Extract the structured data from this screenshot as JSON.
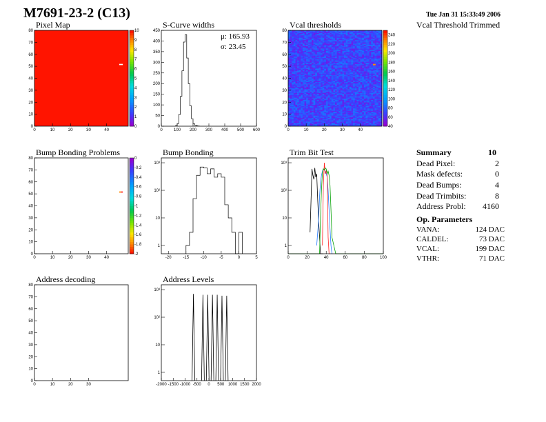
{
  "header": {
    "title": "M7691-23-2 (C13)",
    "timestamp": "Tue Jan 31 15:33:49 2006"
  },
  "panels": {
    "pixel_map": "Pixel Map",
    "scurve": "S-Curve widths",
    "vcal": "Vcal thresholds",
    "vcal_trimmed": "Vcal Threshold Trimmed",
    "bump_problems": "Bump Bonding Problems",
    "bump_bonding": "Bump Bonding",
    "trim_bit": "Trim Bit Test",
    "addr_decoding": "Address decoding",
    "addr_levels": "Address Levels"
  },
  "scurve_stats": {
    "mu": "μ: 165.93",
    "sigma": "σ:  23.45"
  },
  "summary": {
    "title": "Summary",
    "total": "10",
    "rows": [
      {
        "label": "Dead Pixel:",
        "value": "2"
      },
      {
        "label": "Mask defects:",
        "value": "0"
      },
      {
        "label": "Dead Bumps:",
        "value": "4"
      },
      {
        "label": "Dead Trimbits:",
        "value": "8"
      },
      {
        "label": "Address Probl:",
        "value": "4160"
      }
    ]
  },
  "op_parameters": {
    "title": "Op. Parameters",
    "rows": [
      {
        "label": "VANA:",
        "value": "124 DAC"
      },
      {
        "label": "CALDEL:",
        "value": "73 DAC"
      },
      {
        "label": "VCAL:",
        "value": "199 DAC"
      },
      {
        "label": "VTHR:",
        "value": "71 DAC"
      }
    ]
  },
  "chart_data": [
    {
      "id": "pixel_map",
      "type": "heatmap",
      "xlim": [
        0,
        52
      ],
      "ylim": [
        0,
        80
      ],
      "xticks": [
        "0",
        "10",
        "20",
        "30",
        "40"
      ],
      "yticks": [
        "0",
        "10",
        "20",
        "30",
        "40",
        "50",
        "60",
        "70",
        "80"
      ],
      "zlim": [
        0,
        10
      ],
      "zticks": [
        "0",
        "1",
        "2",
        "3",
        "4",
        "5",
        "6",
        "7",
        "8",
        "9",
        "10"
      ],
      "fill_value": 10,
      "hot_pixels": [
        {
          "col": 47,
          "row": 51
        },
        {
          "col": 48,
          "row": 51
        }
      ]
    },
    {
      "id": "scurve",
      "type": "bar",
      "xlim": [
        0,
        600
      ],
      "ylim": [
        0,
        450
      ],
      "xticks": [
        "0",
        "100",
        "200",
        "300",
        "400",
        "500",
        "600"
      ],
      "yticks": [
        "0",
        "50",
        "100",
        "150",
        "200",
        "250",
        "300",
        "350",
        "400",
        "450"
      ],
      "bin_width": 10,
      "bins_x": [
        90,
        100,
        110,
        120,
        130,
        140,
        150,
        160,
        170,
        180,
        190,
        200,
        210,
        220,
        230
      ],
      "bins_y": [
        3,
        12,
        55,
        140,
        260,
        395,
        430,
        320,
        200,
        95,
        35,
        12,
        5,
        2,
        1
      ]
    },
    {
      "id": "vcal",
      "type": "heatmap",
      "xlim": [
        0,
        52
      ],
      "ylim": [
        0,
        80
      ],
      "xticks": [
        "0",
        "10",
        "20",
        "30",
        "40"
      ],
      "yticks": [
        "0",
        "10",
        "20",
        "30",
        "40",
        "50",
        "60",
        "70",
        "80"
      ],
      "zlim": [
        40,
        250
      ],
      "zticks": [
        "40",
        "60",
        "80",
        "100",
        "120",
        "140",
        "160",
        "180",
        "200",
        "220",
        "240"
      ],
      "typical_value": 60
    },
    {
      "id": "bump_problems",
      "type": "heatmap",
      "xlim": [
        0,
        52
      ],
      "ylim": [
        0,
        80
      ],
      "xticks": [
        "0",
        "10",
        "20",
        "30",
        "40"
      ],
      "yticks": [
        "0",
        "10",
        "20",
        "30",
        "40",
        "50",
        "60",
        "70",
        "80"
      ],
      "zlim": [
        -2,
        0
      ],
      "zticks": [
        "0",
        "-0.2",
        "-0.4",
        "-0.6",
        "-0.8",
        "-1",
        "-1.2",
        "-1.4",
        "-1.6",
        "-1.8",
        "-2"
      ],
      "cells": [
        {
          "col": 47,
          "row": 51
        },
        {
          "col": 48,
          "row": 51
        }
      ]
    },
    {
      "id": "bump_bonding",
      "type": "bar",
      "log_y": true,
      "xlim": [
        -22,
        5
      ],
      "ylim": [
        0.5,
        1500
      ],
      "xticks": [
        "-20",
        "-15",
        "-10",
        "-5",
        "0",
        "5"
      ],
      "yticks": [
        "1",
        "10",
        "10²",
        "10³"
      ],
      "bin_width": 1,
      "bins_x": [
        -15,
        -14,
        -13,
        -12,
        -11,
        -10,
        -9,
        -8,
        -7,
        -6,
        -5,
        -4,
        -3,
        -2,
        -1,
        0
      ],
      "bins_y": [
        1,
        3,
        50,
        350,
        700,
        650,
        400,
        600,
        300,
        400,
        300,
        30,
        10,
        3,
        0.5,
        3
      ]
    },
    {
      "id": "trim_bit",
      "type": "line",
      "log_y": true,
      "xlim": [
        0,
        100
      ],
      "ylim": [
        0.5,
        1500
      ],
      "xticks": [
        "0",
        "20",
        "40",
        "60",
        "80",
        "100"
      ],
      "yticks": [
        "1",
        "10",
        "10²",
        "10³"
      ],
      "series": [
        {
          "color": "#000000",
          "x": [
            23,
            24,
            25,
            26,
            27,
            28,
            29,
            30,
            31,
            32,
            33,
            34,
            35,
            36,
            37
          ],
          "y": [
            3,
            40,
            600,
            350,
            250,
            650,
            300,
            400,
            50,
            8,
            2,
            0.5,
            0.5,
            0.5,
            0.5
          ]
        },
        {
          "color": "#1f78ff",
          "x": [
            30,
            32,
            33,
            34,
            35,
            36,
            37,
            38,
            39,
            40,
            41,
            42,
            43,
            44,
            45,
            46
          ],
          "y": [
            1,
            8,
            60,
            200,
            350,
            500,
            600,
            550,
            500,
            400,
            300,
            100,
            20,
            4,
            1,
            0.5
          ]
        },
        {
          "color": "#ff2020",
          "x": [
            36,
            37,
            38,
            39,
            40,
            41,
            42,
            43
          ],
          "y": [
            1,
            150,
            1000,
            400,
            500,
            350,
            2,
            0.5
          ]
        },
        {
          "color": "#00a000",
          "x": [
            0,
            2,
            30,
            33,
            34,
            35,
            36,
            37,
            38,
            39,
            40,
            41,
            42,
            43,
            44,
            45,
            46,
            50,
            52,
            100
          ],
          "y": [
            0.5,
            0.5,
            0.5,
            0.5,
            10,
            100,
            450,
            600,
            550,
            650,
            600,
            400,
            500,
            350,
            150,
            20,
            2,
            0.5,
            0.5,
            0.5
          ]
        }
      ]
    },
    {
      "id": "addr_decoding",
      "type": "heatmap",
      "xlim": [
        0,
        52
      ],
      "ylim": [
        0,
        80
      ],
      "xticks": [
        "0",
        "10",
        "20",
        "30"
      ],
      "yticks": [
        "0",
        "10",
        "20",
        "30",
        "40",
        "50",
        "60",
        "70",
        "80"
      ]
    },
    {
      "id": "addr_levels",
      "type": "bar",
      "log_y": true,
      "xlim": [
        -2000,
        2000
      ],
      "ylim": [
        0.5,
        1500
      ],
      "xticks": [
        "-2000",
        "-1500",
        "-1000",
        "-500",
        "0",
        "500",
        "1000",
        "1500",
        "2000"
      ],
      "yticks": [
        "1",
        "10",
        "10²",
        "10³"
      ],
      "spikes_x": [
        -650,
        -250,
        -50,
        150,
        350,
        550,
        750
      ],
      "spikes_y": [
        700,
        650,
        650,
        650,
        650,
        600,
        600
      ]
    }
  ]
}
